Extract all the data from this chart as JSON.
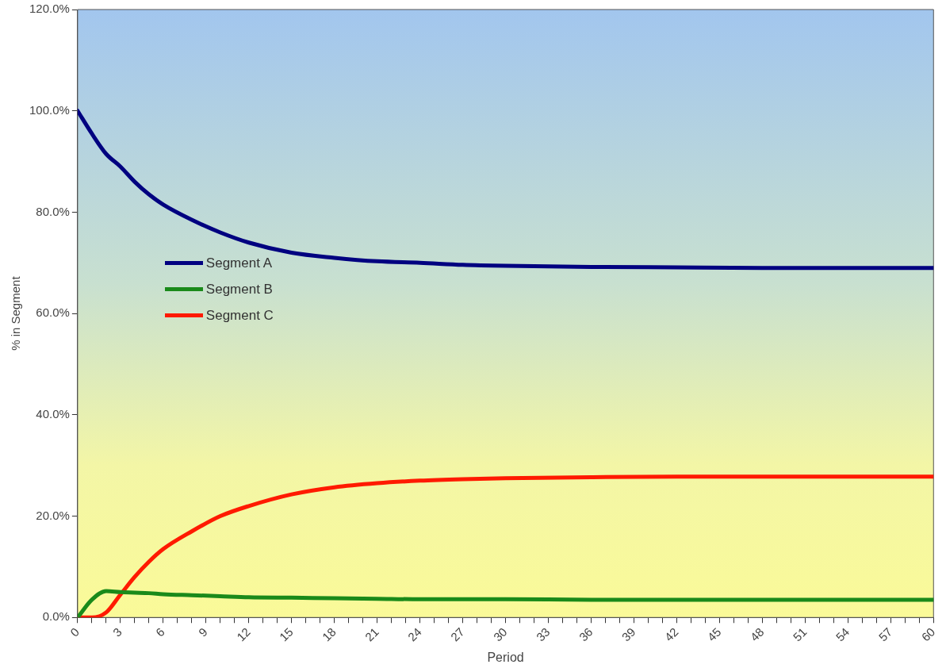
{
  "chart_data": {
    "type": "line",
    "xlabel": "Period",
    "ylabel": "% in Segment",
    "x": [
      0,
      1,
      2,
      3,
      4,
      5,
      6,
      8,
      10,
      12,
      15,
      18,
      21,
      24,
      27,
      30,
      36,
      42,
      48,
      54,
      60
    ],
    "series": [
      {
        "name": "Segment A",
        "color": "#000080",
        "values": [
          100,
          95.5,
          91.5,
          89,
          86,
          83.5,
          81.5,
          78.5,
          76,
          74,
          72,
          71,
          70.3,
          70,
          69.6,
          69.4,
          69.2,
          69.1,
          69,
          69,
          69
        ]
      },
      {
        "name": "Segment B",
        "color": "#1a8a1a",
        "values": [
          0,
          3.5,
          5.2,
          5,
          4.9,
          4.8,
          4.6,
          4.4,
          4.2,
          4,
          3.9,
          3.8,
          3.7,
          3.6,
          3.6,
          3.6,
          3.5,
          3.5,
          3.5,
          3.5,
          3.5
        ]
      },
      {
        "name": "Segment C",
        "color": "#ff1a00",
        "values": [
          0,
          0,
          1,
          4.5,
          8,
          11,
          13.5,
          17,
          20,
          22,
          24.3,
          25.7,
          26.5,
          27,
          27.3,
          27.5,
          27.7,
          27.8,
          27.8,
          27.8,
          27.8
        ]
      }
    ],
    "xlim": [
      0,
      60
    ],
    "xticks": [
      0,
      {
        "value": 1,
        "label": null
      },
      {
        "value": 2,
        "label": null
      },
      3,
      {
        "value": 4,
        "label": null
      },
      {
        "value": 5,
        "label": null
      },
      6,
      {
        "value": 7,
        "label": null
      },
      {
        "value": 8,
        "label": null
      },
      9,
      {
        "value": 10,
        "label": null
      },
      {
        "value": 11,
        "label": null
      },
      12,
      {
        "value": 13,
        "label": null
      },
      {
        "value": 14,
        "label": null
      },
      15,
      {
        "value": 16,
        "label": null
      },
      {
        "value": 17,
        "label": null
      },
      18,
      {
        "value": 19,
        "label": null
      },
      {
        "value": 20,
        "label": null
      },
      21,
      {
        "value": 22,
        "label": null
      },
      {
        "value": 23,
        "label": null
      },
      24,
      {
        "value": 25,
        "label": null
      },
      {
        "value": 26,
        "label": null
      },
      27,
      {
        "value": 28,
        "label": null
      },
      {
        "value": 29,
        "label": null
      },
      30,
      {
        "value": 31,
        "label": null
      },
      {
        "value": 32,
        "label": null
      },
      33,
      {
        "value": 34,
        "label": null
      },
      {
        "value": 35,
        "label": null
      },
      36,
      {
        "value": 37,
        "label": null
      },
      {
        "value": 38,
        "label": null
      },
      39,
      {
        "value": 40,
        "label": null
      },
      {
        "value": 41,
        "label": null
      },
      42,
      {
        "value": 43,
        "label": null
      },
      {
        "value": 44,
        "label": null
      },
      45,
      {
        "value": 46,
        "label": null
      },
      {
        "value": 47,
        "label": null
      },
      48,
      {
        "value": 49,
        "label": null
      },
      {
        "value": 50,
        "label": null
      },
      51,
      {
        "value": 52,
        "label": null
      },
      {
        "value": 53,
        "label": null
      },
      54,
      {
        "value": 55,
        "label": null
      },
      {
        "value": 56,
        "label": null
      },
      57,
      {
        "value": 58,
        "label": null
      },
      {
        "value": 59,
        "label": null
      },
      60
    ],
    "ylim": [
      0,
      120
    ],
    "yticks": [
      {
        "value": 0,
        "label": "0.0%"
      },
      {
        "value": 20,
        "label": "20.0%"
      },
      {
        "value": 40,
        "label": "40.0%"
      },
      {
        "value": 60,
        "label": "60.0%"
      },
      {
        "value": 80,
        "label": "80.0%"
      },
      {
        "value": 100,
        "label": "100.0%"
      },
      {
        "value": 120,
        "label": "120.0%"
      }
    ],
    "grid": false,
    "legend": "left",
    "marker": "none",
    "line_style": "solid"
  }
}
